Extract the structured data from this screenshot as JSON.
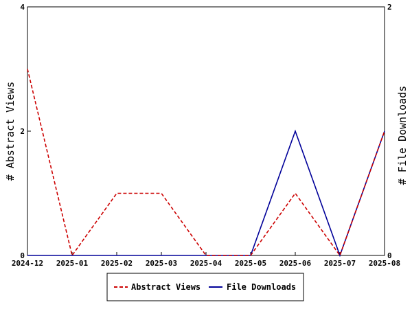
{
  "chart_data": {
    "type": "line",
    "x": [
      "2024-12",
      "2025-01",
      "2025-02",
      "2025-03",
      "2025-04",
      "2025-05",
      "2025-06",
      "2025-07",
      "2025-08"
    ],
    "series": [
      {
        "name": "Abstract Views",
        "axis": "left",
        "color": "#cc0000",
        "dash": true,
        "values": [
          3,
          0,
          1,
          1,
          0,
          0,
          1,
          0,
          2
        ]
      },
      {
        "name": "File Downloads",
        "axis": "right",
        "color": "#000099",
        "dash": false,
        "values": [
          0,
          0,
          0,
          0,
          0,
          0,
          1,
          0,
          1
        ]
      }
    ],
    "ylabel_left": "# Abstract Views",
    "ylabel_right": "# File Downloads",
    "ylim_left": [
      0,
      4
    ],
    "ylim_right": [
      0,
      2
    ],
    "yticks_left": [
      0,
      2,
      4
    ],
    "yticks_right": [
      0,
      2
    ],
    "grid": false,
    "legend_position": "bottom-center"
  }
}
